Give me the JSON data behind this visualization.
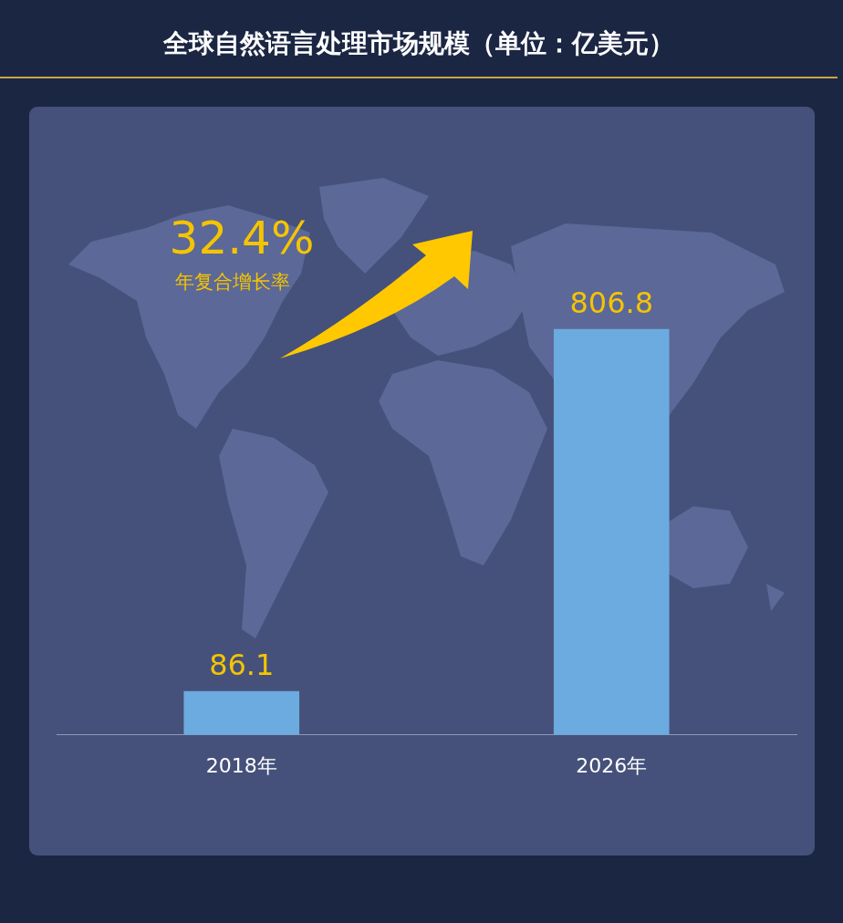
{
  "chart_data": {
    "type": "bar",
    "title": "全球自然语言处理市场规模（单位：亿美元）",
    "categories": [
      "2018年",
      "2026年"
    ],
    "values": [
      86.1,
      806.8
    ],
    "color": "#6cabdf",
    "data_labels": true,
    "annotations": [
      "32.4%",
      "年复合增长率"
    ]
  }
}
